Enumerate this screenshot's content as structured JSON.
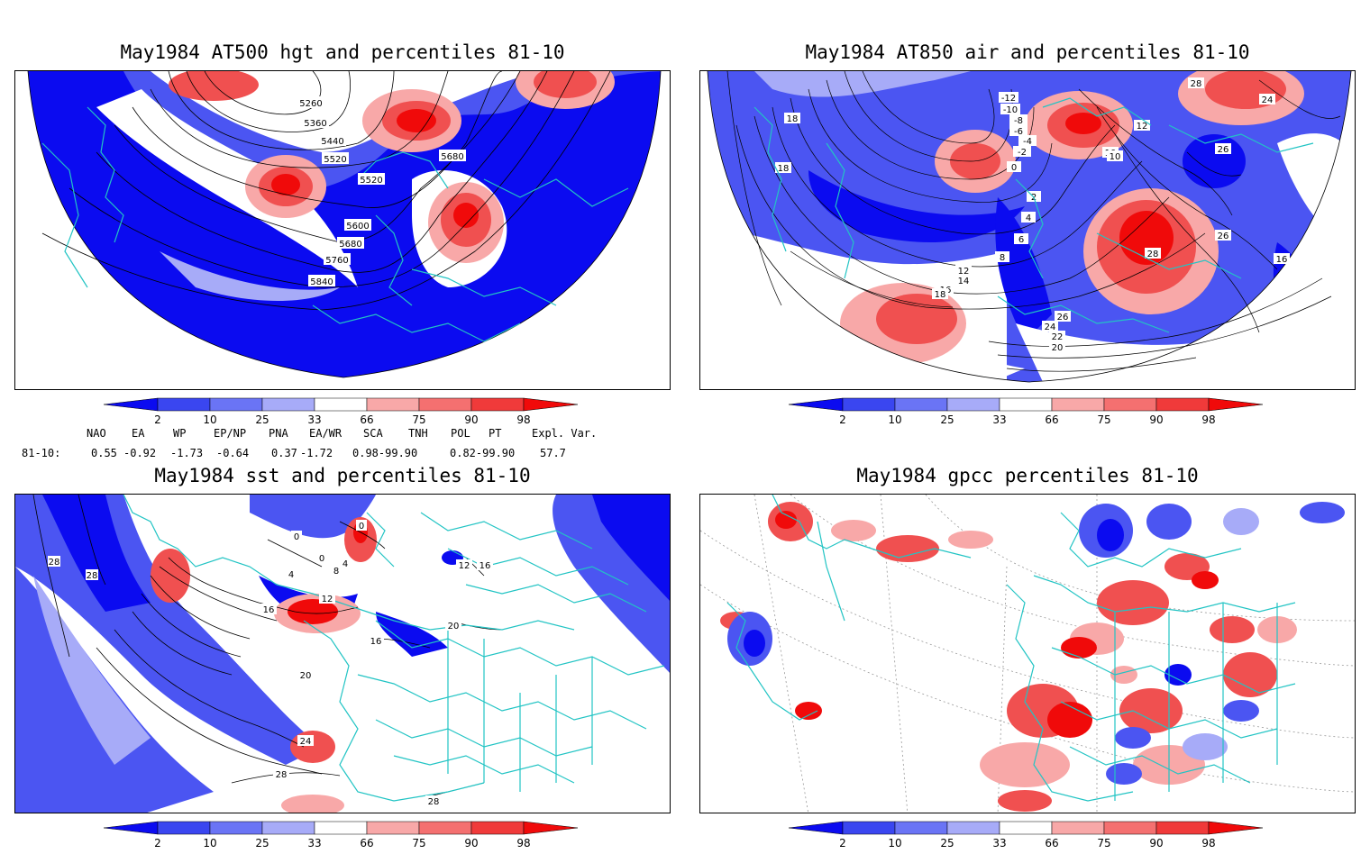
{
  "panels": {
    "p1": {
      "title": "May1984 AT500 hgt and percentiles 81-10",
      "contour_labels": [
        "5260",
        "5360",
        "5440",
        "5520",
        "5520",
        "5600",
        "5680",
        "5680",
        "5760",
        "5840"
      ]
    },
    "p2": {
      "title": "May1984 AT850 air and percentiles 81-10",
      "contour_labels": [
        "-12",
        "-10",
        "-8",
        "-6",
        "-4",
        "-2",
        "0",
        "2",
        "4",
        "6",
        "8",
        "10",
        "12",
        "14",
        "16",
        "18",
        "18",
        "18",
        "20",
        "22",
        "24",
        "26",
        "26",
        "26",
        "28",
        "28",
        "16",
        "10",
        "12",
        "24"
      ]
    },
    "p3": {
      "title": "May1984 sst and percentiles 81-10",
      "contour_labels": [
        "28",
        "28",
        "0",
        "0",
        "0",
        "4",
        "4",
        "8",
        "12",
        "16",
        "16",
        "20",
        "20",
        "24",
        "28",
        "28",
        "12",
        "16"
      ]
    },
    "p4": {
      "title": "May1984 gpcc percentiles 81-10"
    }
  },
  "colorbar": {
    "labels": [
      "2",
      "10",
      "25",
      "33",
      "66",
      "75",
      "90",
      "98"
    ],
    "colors": [
      "#0b0bf0",
      "#3a46f0",
      "#6a74f5",
      "#a7abf8",
      "#ffffff",
      "#f8a8a8",
      "#f47070",
      "#f03a3a",
      "#f00a0a"
    ]
  },
  "indices": {
    "row_label": "81-10:",
    "headers": [
      "NAO",
      "EA",
      "WP",
      "EP/NP",
      "PNA",
      "EA/WR",
      "SCA",
      "TNH",
      "POL",
      "PT",
      "Expl. Var."
    ],
    "values": [
      "0.55",
      "-0.92",
      "-1.73",
      "-0.64",
      "0.37",
      "-1.72",
      "0.98-99.90",
      "",
      "0.82-99.90",
      "",
      "57.7"
    ]
  },
  "map_colors": {
    "coast": "#22c4c4",
    "deep_blue": "#0b0bf0",
    "mid_blue": "#4b55f2",
    "light_blue": "#a7abf8",
    "light_red": "#f8a8a8",
    "mid_red": "#f05050",
    "deep_red": "#f00a0a"
  }
}
